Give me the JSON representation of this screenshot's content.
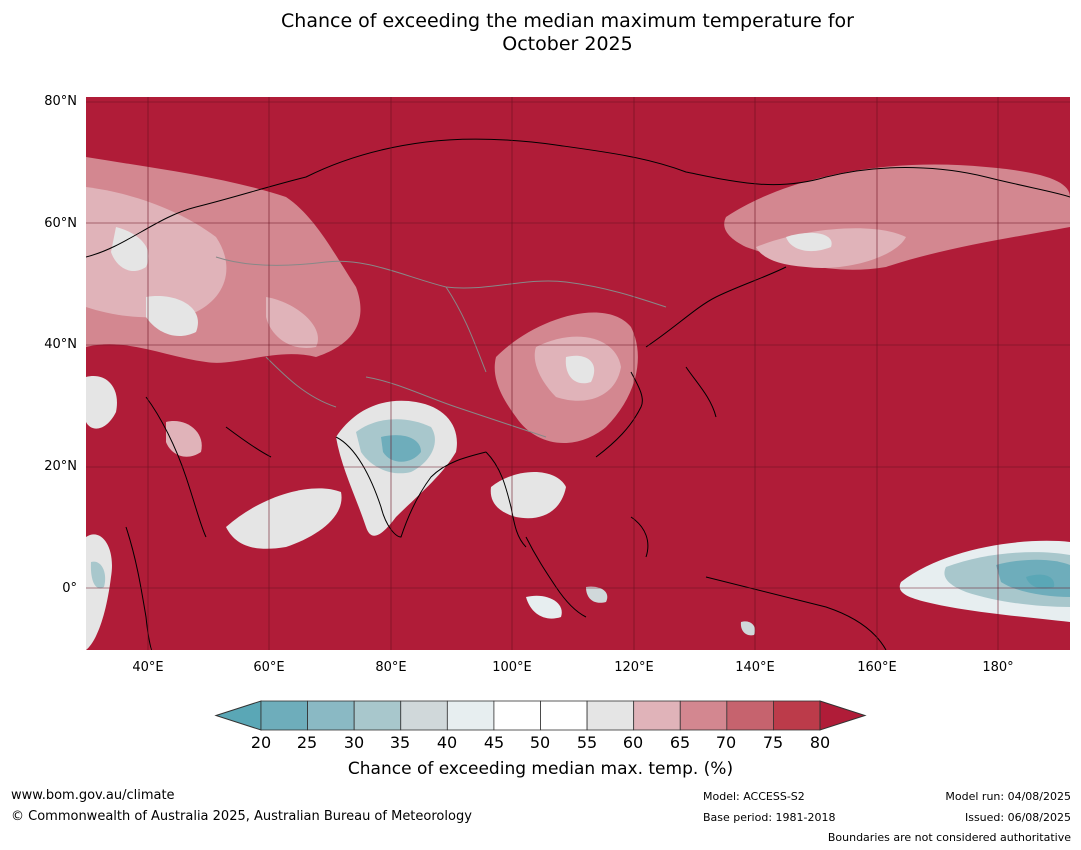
{
  "title_line1": "Chance of exceeding the median maximum temperature for",
  "title_line2": "October 2025",
  "lat_labels": [
    "80°N",
    "60°N",
    "40°N",
    "20°N",
    "0°"
  ],
  "lon_labels": [
    "40°E",
    "60°E",
    "80°E",
    "100°E",
    "120°E",
    "140°E",
    "160°E",
    "180°"
  ],
  "colorbar": {
    "ticks": [
      "20",
      "25",
      "30",
      "35",
      "40",
      "45",
      "50",
      "55",
      "60",
      "65",
      "70",
      "75",
      "80"
    ],
    "colors": [
      "#5aa7b6",
      "#6eadbb",
      "#8ab9c4",
      "#a8c7cc",
      "#d0d8da",
      "#e7eef0",
      "#ffffff",
      "#ffffff",
      "#e5e5e5",
      "#e0b3b9",
      "#d38790",
      "#c6636e",
      "#bc3b4a",
      "#b01c38"
    ],
    "label": "Chance of exceeding median max. temp. (%)"
  },
  "colors": {
    "dominant": "#b01c38",
    "warm_light": "#d38790",
    "cool": "#5aa7b6"
  },
  "footer": {
    "website": "www.bom.gov.au/climate",
    "copyright": "© Commonwealth of Australia 2025, Australian Bureau of Meteorology",
    "model": "Model: ACCESS-S2",
    "base_period": "Base period: 1981-2018",
    "model_run": "Model run: 04/08/2025",
    "issued": "Issued: 06/08/2025",
    "boundaries": "Boundaries are not considered authoritative"
  }
}
